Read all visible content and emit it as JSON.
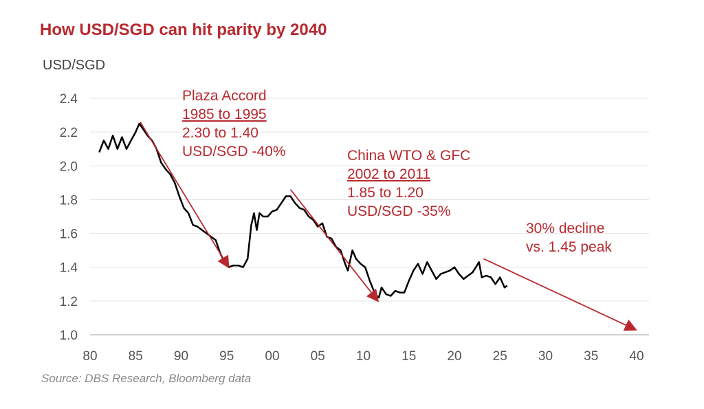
{
  "chart_data": {
    "type": "line",
    "title": "How USD/SGD can hit parity by 2040",
    "ylabel": "USD/SGD",
    "xlabel": "",
    "source": "Source: DBS Research, Bloomberg data",
    "xlim": [
      1980,
      2040
    ],
    "ylim": [
      1.0,
      2.4
    ],
    "x_ticks": [
      1980,
      1985,
      1990,
      1995,
      2000,
      2005,
      2010,
      2015,
      2020,
      2025,
      2030,
      2035,
      2040
    ],
    "x_tick_labels": [
      "80",
      "85",
      "90",
      "95",
      "00",
      "05",
      "10",
      "15",
      "20",
      "25",
      "30",
      "35",
      "40"
    ],
    "y_ticks": [
      1.0,
      1.2,
      1.4,
      1.6,
      1.8,
      2.0,
      2.2,
      2.4
    ],
    "y_tick_labels": [
      "1.0",
      "1.2",
      "1.4",
      "1.6",
      "1.8",
      "2.0",
      "2.2",
      "2.4"
    ],
    "grid": "horizontal",
    "colors": {
      "line": "#000000",
      "accent": "#b8292f",
      "grid": "#e3e3e3"
    },
    "series": [
      {
        "x": [
          1981.0,
          1981.5,
          1982,
          1982.5,
          1983,
          1983.5,
          1984,
          1984.5,
          1985,
          1985.4,
          1985.8,
          1986.3,
          1986.8,
          1987.3,
          1987.8,
          1988.3,
          1988.8,
          1989.3,
          1989.8,
          1990.3,
          1990.8,
          1991.3,
          1991.8,
          1992.3,
          1992.8,
          1993.3,
          1993.8,
          1994.3,
          1994.8,
          1995.2,
          1995.7,
          1996.3,
          1996.8,
          1997.3,
          1997.7,
          1998.0,
          1998.3,
          1998.6,
          1999,
          1999.5,
          2000,
          2000.5,
          2001,
          2001.5,
          2002,
          2002.5,
          2003,
          2003.5,
          2004,
          2004.5,
          2005,
          2005.5,
          2006,
          2006.5,
          2007,
          2007.5,
          2008,
          2008.3,
          2008.8,
          2009.2,
          2009.7,
          2010.2,
          2010.7,
          2011.3,
          2011.7,
          2012,
          2012.5,
          2013,
          2013.5,
          2014,
          2014.5,
          2015,
          2015.5,
          2016,
          2016.5,
          2017,
          2017.5,
          2018,
          2018.5,
          2019,
          2019.5,
          2020,
          2020.5,
          2021,
          2021.5,
          2022,
          2022.7,
          2023,
          2023.5,
          2024,
          2024.5,
          2025,
          2025.5,
          2025.8
        ],
        "y": [
          2.08,
          2.15,
          2.1,
          2.18,
          2.1,
          2.17,
          2.1,
          2.15,
          2.2,
          2.25,
          2.22,
          2.18,
          2.15,
          2.1,
          2.02,
          1.98,
          1.95,
          1.9,
          1.82,
          1.75,
          1.72,
          1.65,
          1.64,
          1.62,
          1.6,
          1.58,
          1.56,
          1.48,
          1.43,
          1.4,
          1.41,
          1.41,
          1.4,
          1.45,
          1.65,
          1.72,
          1.62,
          1.72,
          1.7,
          1.7,
          1.73,
          1.74,
          1.78,
          1.82,
          1.82,
          1.78,
          1.75,
          1.74,
          1.7,
          1.68,
          1.64,
          1.66,
          1.58,
          1.57,
          1.52,
          1.5,
          1.42,
          1.38,
          1.5,
          1.45,
          1.42,
          1.4,
          1.32,
          1.24,
          1.22,
          1.28,
          1.24,
          1.23,
          1.26,
          1.25,
          1.25,
          1.32,
          1.38,
          1.42,
          1.36,
          1.43,
          1.38,
          1.33,
          1.36,
          1.37,
          1.38,
          1.4,
          1.36,
          1.33,
          1.35,
          1.37,
          1.43,
          1.34,
          1.35,
          1.34,
          1.3,
          1.34,
          1.28,
          1.29
        ]
      }
    ],
    "arrows": [
      {
        "from": [
          1985.5,
          2.26
        ],
        "to": [
          1995.2,
          1.4
        ]
      },
      {
        "from": [
          2002.0,
          1.86
        ],
        "to": [
          2011.6,
          1.2
        ]
      },
      {
        "from": [
          2023.2,
          1.45
        ],
        "to": [
          2039.9,
          1.03
        ]
      }
    ],
    "annotations": {
      "plaza": {
        "line1": "Plaza Accord",
        "line2": "1985 to 1995",
        "line3": "2.30 to 1.40",
        "line4": "USD/SGD -40%"
      },
      "china": {
        "line1": "China WTO & GFC",
        "line2": "2002 to 2011",
        "line3": "1.85 to 1.20",
        "line4": "USD/SGD -35%"
      },
      "projection": {
        "line1": "30% decline",
        "line2": "vs. 1.45 peak"
      }
    }
  }
}
